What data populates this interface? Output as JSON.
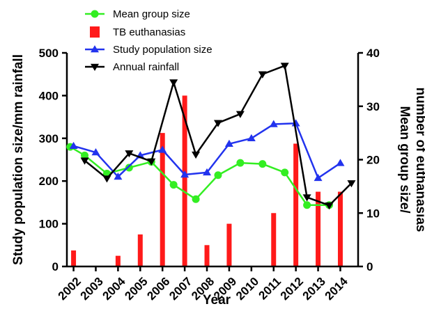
{
  "chart_data": {
    "type": "bar+line",
    "xlabel": "Year",
    "ylabel_left": "Study population size/mm rainfall",
    "ylabel_right": [
      "Mean group size/",
      "number of euthanasias"
    ],
    "ylim_left": [
      0,
      500
    ],
    "yticks_left": [
      0,
      100,
      200,
      300,
      400,
      500
    ],
    "ylim_right": [
      0,
      40
    ],
    "yticks_right": [
      0,
      10,
      20,
      30,
      40
    ],
    "categories": [
      "2002",
      "2003",
      "2004",
      "2005",
      "2006",
      "2007",
      "2008",
      "2009",
      "2010",
      "2011",
      "2012",
      "2013",
      "2014"
    ],
    "legend_placement": "top-left",
    "series": [
      {
        "name": "Mean group size",
        "kind": "line",
        "axis": "right",
        "marker": "circle",
        "color": "#33ee22",
        "x": [
          2001.85,
          2002.5,
          2003.5,
          2004.5,
          2005.5,
          2006.5,
          2007.5,
          2008.5,
          2009.5,
          2010.5,
          2011.5,
          2012.5,
          2013.5
        ],
        "values": [
          22.4,
          20.8,
          17.4,
          18.5,
          19.6,
          15.3,
          12.6,
          17.1,
          19.4,
          19.2,
          17.6,
          11.5,
          11.5
        ]
      },
      {
        "name": "TB euthanasias",
        "kind": "bar",
        "axis": "right",
        "color": "#ff1a1a",
        "x": [
          2002,
          2004,
          2005,
          2006,
          2007,
          2008,
          2009,
          2011,
          2012,
          2013,
          2014
        ],
        "values": [
          3,
          2,
          6,
          25,
          32,
          4,
          8,
          10,
          23,
          14,
          14
        ]
      },
      {
        "name": "Study population size",
        "kind": "line",
        "axis": "left",
        "marker": "triangle-up",
        "color": "#2233ee",
        "x": [
          2002,
          2003,
          2004,
          2005,
          2006,
          2007,
          2008,
          2009,
          2010,
          2011,
          2012,
          2013,
          2014
        ],
        "values": [
          282,
          267,
          210,
          260,
          273,
          215,
          220,
          287,
          300,
          333,
          335,
          207,
          242
        ]
      },
      {
        "name": "Annual rainfall",
        "kind": "line",
        "axis": "left",
        "marker": "triangle-down",
        "color": "#000000",
        "x": [
          2002.5,
          2003.5,
          2004.5,
          2005.5,
          2006.5,
          2007.5,
          2008.5,
          2009.5,
          2010.5,
          2011.5,
          2012.5,
          2013.5,
          2014.5
        ],
        "values": [
          248,
          206,
          265,
          246,
          431,
          262,
          336,
          357,
          450,
          470,
          162,
          143,
          195
        ]
      }
    ]
  }
}
